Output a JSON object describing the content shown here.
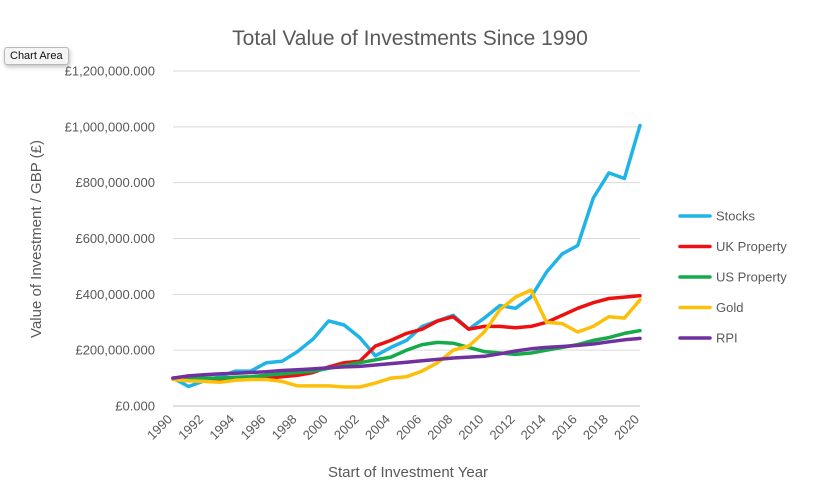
{
  "tooltip": "Chart Area",
  "chart_data": {
    "type": "line",
    "title": "Total Value of Investments Since 1990",
    "xlabel": "Start of Investment Year",
    "ylabel": "Value of Investment / GBP (£)",
    "x": [
      1990,
      1991,
      1992,
      1993,
      1994,
      1995,
      1996,
      1997,
      1998,
      1999,
      2000,
      2001,
      2002,
      2003,
      2004,
      2005,
      2006,
      2007,
      2008,
      2009,
      2010,
      2011,
      2012,
      2013,
      2014,
      2015,
      2016,
      2017,
      2018,
      2019,
      2020
    ],
    "x_tick_labels": [
      "1990",
      "1992",
      "1994",
      "1996",
      "1998",
      "2000",
      "2002",
      "2004",
      "2006",
      "2008",
      "2010",
      "2012",
      "2014",
      "2016",
      "2018",
      "2020"
    ],
    "y_tick_labels": [
      "£0.000",
      "£200,000.000",
      "£400,000.000",
      "£600,000.000",
      "£800,000.000",
      "£1,000,000.000",
      "£1,200,000.000"
    ],
    "y_ticks": [
      0,
      200000,
      400000,
      600000,
      800000,
      1000000,
      1200000
    ],
    "ylim": [
      0,
      1200000
    ],
    "xlim": [
      1990,
      2020
    ],
    "grid": true,
    "legend": "right",
    "series": [
      {
        "name": "Stocks",
        "color": "#1fb3e8",
        "values": [
          100000,
          70000,
          90000,
          105000,
          125000,
          125000,
          155000,
          160000,
          195000,
          240000,
          305000,
          290000,
          245000,
          180000,
          210000,
          235000,
          285000,
          305000,
          325000,
          275000,
          315000,
          360000,
          350000,
          390000,
          480000,
          545000,
          575000,
          745000,
          835000,
          815000,
          1005000
        ]
      },
      {
        "name": "UK Property",
        "color": "#ee1010",
        "values": [
          100000,
          95000,
          90000,
          90000,
          95000,
          97000,
          100000,
          105000,
          110000,
          120000,
          140000,
          155000,
          160000,
          215000,
          235000,
          260000,
          275000,
          305000,
          320000,
          275000,
          285000,
          285000,
          280000,
          285000,
          300000,
          325000,
          350000,
          370000,
          385000,
          390000,
          395000
        ]
      },
      {
        "name": "US Property",
        "color": "#15ab4a",
        "values": [
          100000,
          100000,
          100000,
          100000,
          103000,
          105000,
          110000,
          115000,
          120000,
          125000,
          135000,
          145000,
          155000,
          165000,
          175000,
          200000,
          220000,
          228000,
          225000,
          210000,
          195000,
          190000,
          185000,
          190000,
          200000,
          210000,
          220000,
          235000,
          245000,
          260000,
          270000
        ]
      },
      {
        "name": "Gold",
        "color": "#fdc00a",
        "values": [
          95000,
          90000,
          88000,
          85000,
          92000,
          95000,
          95000,
          88000,
          72000,
          72000,
          72000,
          68000,
          68000,
          82000,
          100000,
          105000,
          125000,
          155000,
          200000,
          215000,
          265000,
          345000,
          390000,
          415000,
          300000,
          295000,
          265000,
          285000,
          320000,
          315000,
          380000
        ]
      },
      {
        "name": "RPI",
        "color": "#7030a0",
        "values": [
          100000,
          108000,
          112000,
          115000,
          117000,
          120000,
          123000,
          127000,
          130000,
          133000,
          137000,
          140000,
          142000,
          147000,
          152000,
          157000,
          162000,
          167000,
          172000,
          175000,
          178000,
          187000,
          197000,
          205000,
          210000,
          213000,
          217000,
          222000,
          230000,
          237000,
          242000
        ]
      }
    ]
  }
}
